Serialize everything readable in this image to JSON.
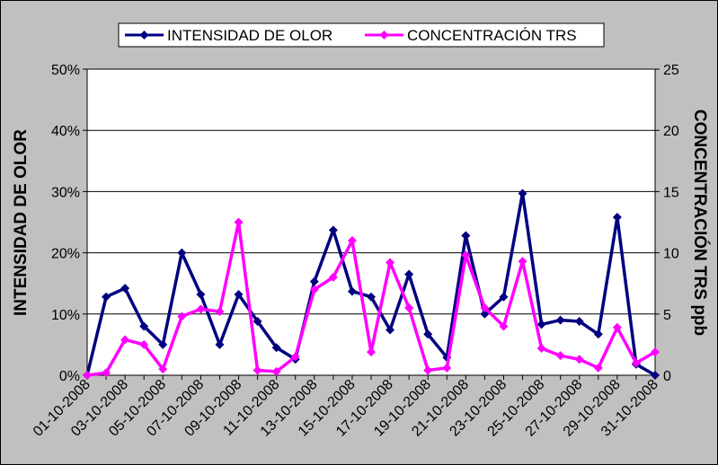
{
  "chart_data": {
    "type": "line",
    "x": [
      "01-10-2008",
      "02-10-2008",
      "03-10-2008",
      "04-10-2008",
      "05-10-2008",
      "06-10-2008",
      "07-10-2008",
      "08-10-2008",
      "09-10-2008",
      "10-10-2008",
      "11-10-2008",
      "12-10-2008",
      "13-10-2008",
      "14-10-2008",
      "15-10-2008",
      "16-10-2008",
      "17-10-2008",
      "18-10-2008",
      "19-10-2008",
      "20-10-2008",
      "21-10-2008",
      "22-10-2008",
      "23-10-2008",
      "24-10-2008",
      "25-10-2008",
      "26-10-2008",
      "27-10-2008",
      "28-10-2008",
      "29-10-2008",
      "30-10-2008",
      "31-10-2008"
    ],
    "x_tick_labels": [
      "01-10-2008",
      "03-10-2008",
      "05-10-2008",
      "07-10-2008",
      "09-10-2008",
      "11-10-2008",
      "13-10-2008",
      "15-10-2008",
      "17-10-2008",
      "19-10-2008",
      "21-10-2008",
      "23-10-2008",
      "25-10-2008",
      "27-10-2008",
      "29-10-2008",
      "31-10-2008"
    ],
    "series": [
      {
        "name": "INTENSIDAD DE OLOR",
        "axis": "left",
        "color": "#000080",
        "marker": "diamond",
        "values": [
          0,
          12.8,
          14.2,
          8,
          5,
          20,
          13.2,
          5,
          13.2,
          8.8,
          4.5,
          2.6,
          15.3,
          23.7,
          13.7,
          12.8,
          7.4,
          16.5,
          6.7,
          2.9,
          22.8,
          10,
          12.8,
          29.7,
          8.3,
          9,
          8.8,
          6.7,
          25.8,
          1.8,
          0
        ]
      },
      {
        "name": "CONCENTRACIÓN TRS",
        "axis": "right",
        "color": "#ff00ff",
        "marker": "diamond",
        "values": [
          0,
          0.2,
          2.9,
          2.5,
          0.5,
          4.8,
          5.4,
          5.2,
          12.5,
          0.4,
          0.3,
          1.5,
          7,
          8,
          11,
          1.9,
          9.2,
          5.5,
          0.4,
          0.6,
          9.8,
          5.5,
          4,
          9.3,
          2.2,
          1.6,
          1.3,
          0.6,
          3.9,
          1,
          1.9
        ]
      }
    ],
    "y_left": {
      "label": "INTENSIDAD DE OLOR",
      "ylim": [
        0,
        50
      ],
      "ticks": [
        0,
        10,
        20,
        30,
        40,
        50
      ],
      "tick_labels": [
        "0%",
        "10%",
        "20%",
        "30%",
        "40%",
        "50%"
      ]
    },
    "y_right": {
      "label": "CONCENTRACIÓN TRS ppb",
      "ylim": [
        0,
        25
      ],
      "ticks": [
        0,
        5,
        10,
        15,
        20,
        25
      ],
      "tick_labels": [
        "0",
        "5",
        "10",
        "15",
        "20",
        "25"
      ]
    },
    "grid": "horizontal",
    "legend": "top",
    "plot_background": "#ffffff",
    "chart_background": "#c0c0c0"
  }
}
